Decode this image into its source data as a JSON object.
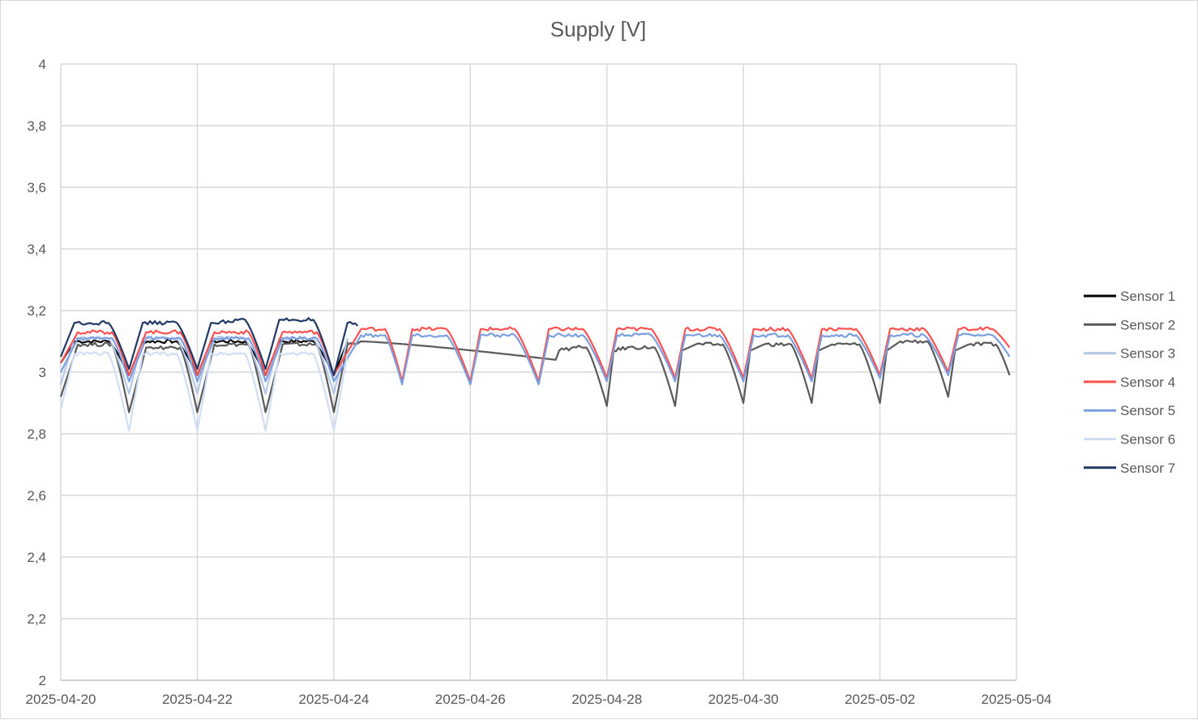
{
  "chart_data": {
    "type": "line",
    "title": "Supply [V]",
    "xlabel": "",
    "ylabel": "",
    "ylim": [
      2,
      4
    ],
    "xlim": [
      "2025-04-20",
      "2025-05-04"
    ],
    "y_ticks": [
      2,
      2.2,
      2.4,
      2.6,
      2.8,
      3,
      3.2,
      3.4,
      3.6,
      3.8,
      4
    ],
    "y_tick_labels": [
      "2",
      "2,2",
      "2,4",
      "2,6",
      "2,8",
      "3",
      "3,2",
      "3,4",
      "3,6",
      "3,8",
      "4"
    ],
    "x_tick_labels": [
      "2025-04-20",
      "2025-04-22",
      "2025-04-24",
      "2025-04-26",
      "2025-04-28",
      "2025-04-30",
      "2025-05-02",
      "2025-05-04"
    ],
    "x_tick_days": [
      0,
      2,
      4,
      6,
      8,
      10,
      12,
      14
    ],
    "grid": true,
    "legend_position": "right",
    "series": [
      {
        "name": "Sensor 1",
        "color": "#000000",
        "x_days": [
          0.0,
          0.2,
          0.7,
          1.0,
          1.2,
          1.7,
          2.0,
          2.2,
          2.7,
          3.0,
          3.2,
          3.7,
          4.0,
          4.2
        ],
        "values": [
          3.03,
          3.1,
          3.1,
          2.99,
          3.1,
          3.1,
          2.99,
          3.1,
          3.1,
          2.99,
          3.1,
          3.1,
          2.99,
          3.1
        ]
      },
      {
        "name": "Sensor 2",
        "color": "#595959",
        "x_days": [
          0.0,
          0.25,
          0.75,
          1.0,
          1.25,
          1.75,
          2.0,
          2.25,
          2.75,
          3.0,
          3.25,
          3.75,
          4.0,
          4.2,
          4.4,
          7.25,
          7.3,
          7.55,
          7.7,
          8.0,
          8.1,
          8.3,
          8.7,
          9.0,
          9.1,
          9.3,
          9.7,
          10.0,
          10.1,
          10.3,
          10.7,
          11.0,
          11.1,
          11.3,
          11.7,
          12.0,
          12.1,
          12.3,
          12.7,
          13.0,
          13.1,
          13.3,
          13.7,
          13.9
        ],
        "values": [
          2.92,
          3.09,
          3.09,
          2.87,
          3.08,
          3.08,
          2.87,
          3.09,
          3.09,
          2.87,
          3.09,
          3.09,
          2.87,
          3.09,
          3.1,
          3.04,
          3.07,
          3.08,
          3.08,
          2.89,
          3.07,
          3.08,
          3.08,
          2.89,
          3.07,
          3.09,
          3.09,
          2.9,
          3.07,
          3.09,
          3.09,
          2.9,
          3.07,
          3.09,
          3.09,
          2.9,
          3.07,
          3.1,
          3.1,
          2.92,
          3.07,
          3.09,
          3.09,
          2.99
        ]
      },
      {
        "name": "Sensor 3",
        "color": "#b4c7e7",
        "x_days": [
          0.0,
          0.2,
          0.7,
          1.0,
          1.2,
          1.7,
          2.0,
          2.2,
          2.7,
          3.0,
          3.2,
          3.7,
          4.0,
          4.2
        ],
        "values": [
          2.96,
          3.11,
          3.11,
          2.93,
          3.11,
          3.11,
          2.93,
          3.11,
          3.11,
          2.93,
          3.11,
          3.11,
          2.93,
          3.11
        ]
      },
      {
        "name": "Sensor 4",
        "color": "#ff5050",
        "x_days": [
          0.0,
          0.25,
          0.75,
          1.0,
          1.25,
          1.75,
          2.0,
          2.25,
          2.75,
          3.0,
          3.25,
          3.75,
          4.0,
          4.4,
          4.75,
          5.0,
          5.15,
          5.65,
          6.0,
          6.15,
          6.65,
          7.0,
          7.15,
          7.65,
          8.0,
          8.15,
          8.65,
          9.0,
          9.15,
          9.65,
          10.0,
          10.15,
          10.65,
          11.0,
          11.15,
          11.65,
          12.0,
          12.15,
          12.65,
          13.0,
          13.15,
          13.65,
          13.9
        ],
        "values": [
          3.03,
          3.13,
          3.13,
          2.99,
          3.13,
          3.13,
          2.99,
          3.13,
          3.13,
          2.99,
          3.13,
          3.13,
          2.99,
          3.14,
          3.14,
          2.97,
          3.14,
          3.14,
          2.97,
          3.14,
          3.14,
          2.97,
          3.14,
          3.14,
          2.98,
          3.14,
          3.14,
          2.98,
          3.14,
          3.14,
          2.98,
          3.14,
          3.14,
          2.98,
          3.14,
          3.14,
          2.99,
          3.14,
          3.14,
          3.0,
          3.14,
          3.14,
          3.08
        ]
      },
      {
        "name": "Sensor 5",
        "color": "#7a9fe0",
        "x_days": [
          0.0,
          0.25,
          0.75,
          1.0,
          1.25,
          1.75,
          2.0,
          2.25,
          2.75,
          3.0,
          3.25,
          3.75,
          4.0,
          4.4,
          4.75,
          5.0,
          5.15,
          5.65,
          6.0,
          6.15,
          6.65,
          7.0,
          7.15,
          7.65,
          8.0,
          8.15,
          8.65,
          9.0,
          9.15,
          9.65,
          10.0,
          10.15,
          10.65,
          11.0,
          11.15,
          11.65,
          12.0,
          12.15,
          12.65,
          13.0,
          13.15,
          13.65,
          13.9
        ],
        "values": [
          3.0,
          3.11,
          3.11,
          2.97,
          3.11,
          3.11,
          2.97,
          3.11,
          3.11,
          2.97,
          3.11,
          3.11,
          2.97,
          3.12,
          3.12,
          2.96,
          3.12,
          3.12,
          2.96,
          3.12,
          3.12,
          2.96,
          3.12,
          3.12,
          2.97,
          3.12,
          3.12,
          2.97,
          3.12,
          3.12,
          2.97,
          3.12,
          3.12,
          2.97,
          3.12,
          3.12,
          2.98,
          3.12,
          3.12,
          2.99,
          3.12,
          3.12,
          3.05
        ]
      },
      {
        "name": "Sensor 6",
        "color": "#d0def5",
        "x_days": [
          0.0,
          0.2,
          0.7,
          1.0,
          1.2,
          1.7,
          2.0,
          2.2,
          2.7,
          3.0,
          3.2,
          3.7,
          4.0,
          4.2
        ],
        "values": [
          2.88,
          3.06,
          3.06,
          2.81,
          3.06,
          3.06,
          2.81,
          3.06,
          3.06,
          2.81,
          3.06,
          3.06,
          2.81,
          3.06
        ]
      },
      {
        "name": "Sensor 7",
        "color": "#1f3864",
        "x_days": [
          0.0,
          0.2,
          0.7,
          1.0,
          1.2,
          1.7,
          2.0,
          2.2,
          2.7,
          3.0,
          3.2,
          3.7,
          4.0,
          4.2,
          4.35
        ],
        "values": [
          3.05,
          3.16,
          3.16,
          3.01,
          3.16,
          3.16,
          3.01,
          3.16,
          3.17,
          3.01,
          3.17,
          3.17,
          2.99,
          3.16,
          3.15
        ]
      }
    ]
  }
}
